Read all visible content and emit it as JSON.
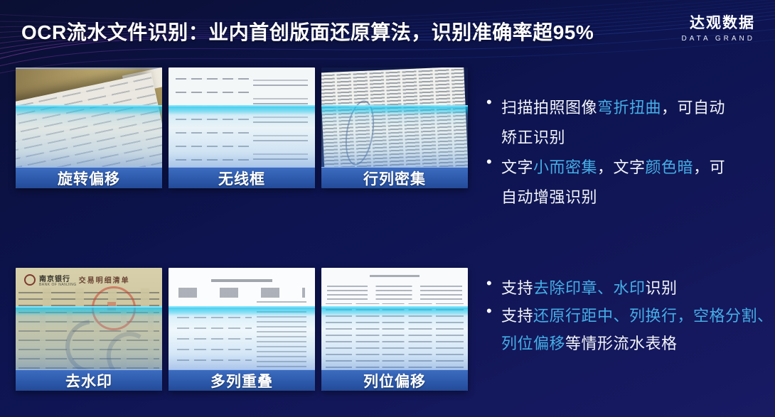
{
  "slide": {
    "title": "OCR流水文件识别：业内首创版面还原算法，识别准确率超95%",
    "colors": {
      "background": "#0d1450",
      "accent": "#45aee6",
      "label_bar": "#2e5cab",
      "scan_line": "#1ac4ec"
    }
  },
  "logo": {
    "name": "达观数据",
    "subtitle": "DATA GRAND"
  },
  "cards": [
    {
      "label": "旋转偏移"
    },
    {
      "label": "无线框"
    },
    {
      "label": "行列密集"
    },
    {
      "label": "去水印",
      "doc_bank": "南京银行",
      "doc_bank_en": "BANK OF NANJING",
      "doc_title": "交易明细清单"
    },
    {
      "label": "多列重叠"
    },
    {
      "label": "列位偏移"
    }
  ],
  "bullet_groups": [
    {
      "items": [
        {
          "lines": [
            [
              {
                "text": "扫描拍照图像",
                "highlight": false
              },
              {
                "text": "弯折扭曲",
                "highlight": true
              },
              {
                "text": "，可自动",
                "highlight": false
              }
            ],
            [
              {
                "text": "矫正识别",
                "highlight": false
              }
            ]
          ]
        },
        {
          "lines": [
            [
              {
                "text": "文字",
                "highlight": false
              },
              {
                "text": "小而密集",
                "highlight": true
              },
              {
                "text": "，文字",
                "highlight": false
              },
              {
                "text": "颜色暗",
                "highlight": true
              },
              {
                "text": "，可",
                "highlight": false
              }
            ],
            [
              {
                "text": "自动增强识别",
                "highlight": false
              }
            ]
          ]
        }
      ]
    },
    {
      "items": [
        {
          "lines": [
            [
              {
                "text": "支持",
                "highlight": false
              },
              {
                "text": "去除印章、水印",
                "highlight": true
              },
              {
                "text": "识别",
                "highlight": false
              }
            ]
          ]
        },
        {
          "lines": [
            [
              {
                "text": "支持",
                "highlight": false
              },
              {
                "text": "还原行距中、列换行，空格分割、",
                "highlight": true
              }
            ],
            [
              {
                "text": "列位偏移",
                "highlight": true
              },
              {
                "text": "等情形流水表格",
                "highlight": false
              }
            ]
          ]
        }
      ]
    }
  ]
}
